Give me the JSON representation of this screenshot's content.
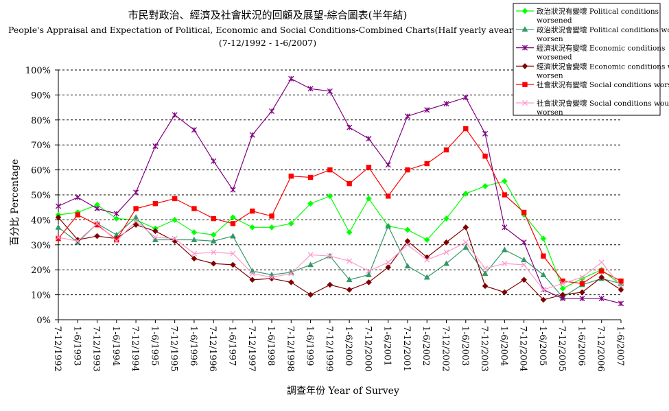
{
  "chart_data": {
    "type": "line",
    "title": "市民對政治、經濟及社會狀況的回顧及展望-綜合圖表(半年結)",
    "subtitle": "People's Appraisal and Expectation of Political, Economic and Social Conditions-Combined Charts(Half yearly avearge)",
    "date_range": "(7-12/1992 - 1-6/2007)",
    "xlabel": "調查年份 Year of Survey",
    "ylabel": "百分比 Percentage",
    "ylim": [
      0,
      100
    ],
    "y_ticks": [
      "0%",
      "10%",
      "20%",
      "30%",
      "40%",
      "50%",
      "60%",
      "70%",
      "80%",
      "90%",
      "100%"
    ],
    "grid": "horizontal-dashed",
    "legend_position": "top-right",
    "categories": [
      "7-12/1992",
      "1-6/1993",
      "7-12/1993",
      "1-6/1994",
      "7-12/1994",
      "1-6/1995",
      "7-12/1995",
      "1-6/1996",
      "7-12/1996",
      "1-6/1997",
      "7-12/1997",
      "1-6/1998",
      "7-12/1998",
      "1-6/1999",
      "7-12/1999",
      "1-6/2000",
      "7-12/2000",
      "1-6/2001",
      "7-12/2001",
      "1-6/2002",
      "7-12/2002",
      "1-6/2003",
      "7-12/2003",
      "1-6/2004",
      "7-12/2004",
      "1-6/2005",
      "7-12/2005",
      "1-6/2006",
      "7-12/2006",
      "1-6/2007"
    ],
    "series": [
      {
        "name": "政治狀況有變壞 Political conditions worsened",
        "color": "#00ff00",
        "marker": "diamond",
        "values": [
          42.0,
          43.0,
          46.0,
          40.5,
          40.0,
          36.5,
          40.0,
          35.0,
          34.0,
          41.0,
          37.0,
          37.0,
          38.5,
          46.5,
          49.5,
          35.0,
          48.5,
          37.5,
          36.0,
          32.0,
          40.5,
          50.5,
          53.5,
          55.5,
          42.0,
          32.5,
          12.5,
          16.5,
          20.0,
          14.0
        ]
      },
      {
        "name": "政治狀況會變壞 Political conditions would worsen",
        "color": "#339966",
        "marker": "triangle",
        "values": [
          37.0,
          31.0,
          38.5,
          34.0,
          41.0,
          32.0,
          32.0,
          32.0,
          31.5,
          33.5,
          19.5,
          18.0,
          19.0,
          22.0,
          25.5,
          16.0,
          18.0,
          37.5,
          21.5,
          17.0,
          22.5,
          29.0,
          18.5,
          28.0,
          24.0,
          18.0,
          9.0,
          14.0,
          16.5,
          14.5
        ]
      },
      {
        "name": "經濟狀況有變壞 Economic conditions worsened",
        "color": "#800080",
        "marker": "star",
        "values": [
          45.5,
          49.0,
          44.5,
          42.5,
          51.0,
          69.5,
          82.0,
          76.0,
          63.5,
          52.0,
          74.0,
          83.5,
          96.5,
          92.5,
          91.5,
          77.0,
          72.5,
          62.0,
          81.5,
          84.0,
          86.5,
          89.0,
          74.5,
          37.0,
          31.0,
          12.0,
          8.5,
          8.5,
          8.5,
          6.5
        ]
      },
      {
        "name": "經濟狀況會變壞 Economic conditions would worsen",
        "color": "#800000",
        "marker": "diamond",
        "values": [
          41.0,
          32.0,
          33.5,
          32.5,
          38.0,
          35.5,
          31.5,
          24.5,
          22.5,
          22.0,
          16.0,
          16.5,
          15.0,
          10.0,
          14.0,
          12.0,
          15.0,
          21.0,
          31.5,
          25.0,
          31.0,
          37.0,
          13.5,
          11.0,
          16.0,
          8.0,
          10.0,
          11.0,
          17.0,
          12.0
        ]
      },
      {
        "name": "社會狀況有變壞 Social conditions worsened",
        "color": "#ff0000",
        "marker": "square",
        "values": [
          32.5,
          42.0,
          38.0,
          32.0,
          44.5,
          46.5,
          48.5,
          44.5,
          40.5,
          38.5,
          43.5,
          41.5,
          57.5,
          57.0,
          60.0,
          54.5,
          61.0,
          49.5,
          60.0,
          62.5,
          68.0,
          76.5,
          65.5,
          50.0,
          43.0,
          25.5,
          15.5,
          14.5,
          19.5,
          15.5
        ]
      },
      {
        "name": "社會狀況會變壞 Social conditions would worsen",
        "color": "#ff99cc",
        "marker": "x",
        "values": [
          33.0,
          31.5,
          38.5,
          31.5,
          39.5,
          33.0,
          32.5,
          26.5,
          27.0,
          26.5,
          18.5,
          17.0,
          18.5,
          26.0,
          25.5,
          23.5,
          19.5,
          23.0,
          30.0,
          24.0,
          27.0,
          31.0,
          20.5,
          22.5,
          22.0,
          12.0,
          14.5,
          17.0,
          23.0,
          13.5
        ]
      }
    ]
  }
}
